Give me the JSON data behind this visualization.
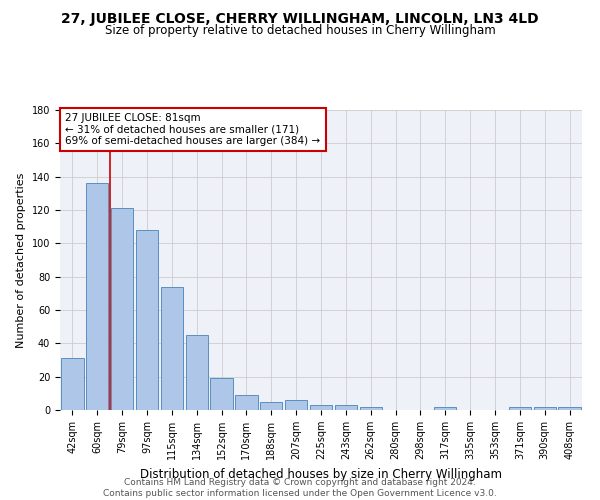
{
  "title": "27, JUBILEE CLOSE, CHERRY WILLINGHAM, LINCOLN, LN3 4LD",
  "subtitle": "Size of property relative to detached houses in Cherry Willingham",
  "xlabel": "Distribution of detached houses by size in Cherry Willingham",
  "ylabel": "Number of detached properties",
  "categories": [
    "42sqm",
    "60sqm",
    "79sqm",
    "97sqm",
    "115sqm",
    "134sqm",
    "152sqm",
    "170sqm",
    "188sqm",
    "207sqm",
    "225sqm",
    "243sqm",
    "262sqm",
    "280sqm",
    "298sqm",
    "317sqm",
    "335sqm",
    "353sqm",
    "371sqm",
    "390sqm",
    "408sqm"
  ],
  "values": [
    31,
    136,
    121,
    108,
    74,
    45,
    19,
    9,
    5,
    6,
    3,
    3,
    2,
    0,
    0,
    2,
    0,
    0,
    2,
    2,
    2
  ],
  "bar_color": "#aec6e8",
  "bar_edge_color": "#5a8fc0",
  "annotation_line1": "27 JUBILEE CLOSE: 81sqm",
  "annotation_line2": "← 31% of detached houses are smaller (171)",
  "annotation_line3": "69% of semi-detached houses are larger (384) →",
  "annotation_box_color": "#ffffff",
  "annotation_box_edge_color": "#cc0000",
  "annotation_text_fontsize": 7.5,
  "ylim": [
    0,
    180
  ],
  "yticks": [
    0,
    20,
    40,
    60,
    80,
    100,
    120,
    140,
    160,
    180
  ],
  "grid_color": "#cccccc",
  "background_color": "#eef2f8",
  "footer_line1": "Contains HM Land Registry data © Crown copyright and database right 2024.",
  "footer_line2": "Contains public sector information licensed under the Open Government Licence v3.0.",
  "title_fontsize": 10,
  "subtitle_fontsize": 8.5,
  "xlabel_fontsize": 8.5,
  "ylabel_fontsize": 8,
  "footer_fontsize": 6.5,
  "tick_fontsize": 7
}
